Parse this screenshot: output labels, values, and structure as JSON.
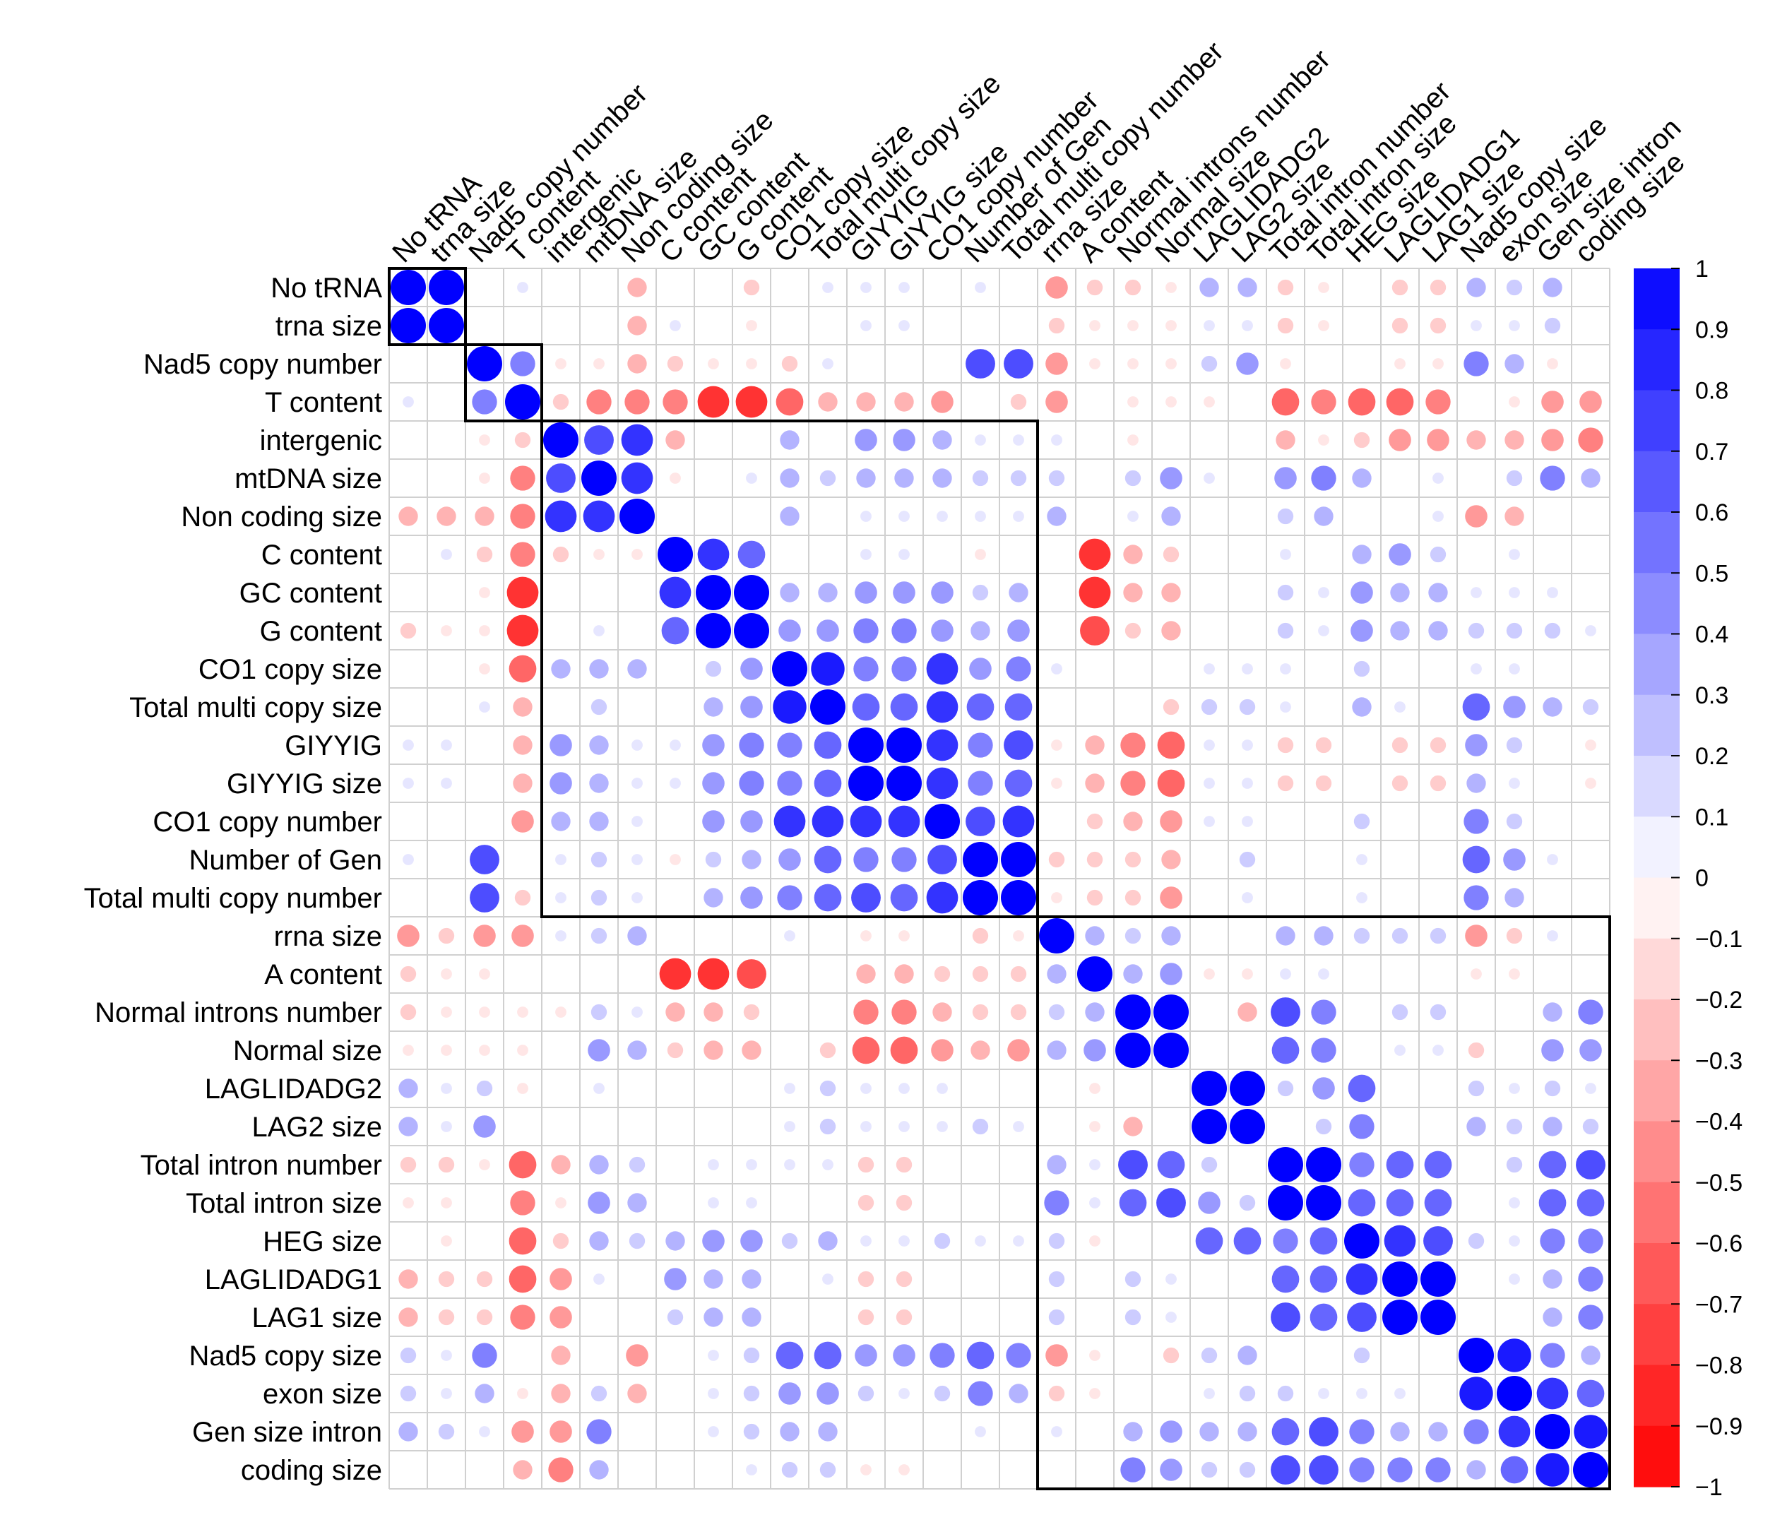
{
  "chart_data": {
    "type": "heatmap",
    "variables": [
      "No tRNA",
      "trna size",
      "Nad5 copy number",
      "T content",
      "intergenic",
      "mtDNA size",
      "Non coding size",
      "C content",
      "GC content",
      "G content",
      "CO1 copy size",
      "Total multi copy size",
      "GIYYIG",
      "GIYYIG size",
      "CO1 copy number",
      "Number of Gen",
      "Total multi copy number",
      "rrna size",
      "A content",
      "Normal introns number",
      "Normal size",
      "LAGLIDADG2",
      "LAG2 size",
      "Total intron number",
      "Total intron size",
      "HEG size",
      "LAGLIDADG1",
      "LAG1 size",
      "Nad5 copy size",
      "exon size",
      "Gen size intron",
      "coding size"
    ],
    "matrix": [
      [
        1,
        1,
        0,
        0.1,
        0,
        0,
        -0.3,
        0,
        0,
        -0.2,
        0,
        0.1,
        0.1,
        0.1,
        0,
        0.1,
        0,
        -0.4,
        -0.2,
        -0.2,
        -0.1,
        0.3,
        0.3,
        -0.2,
        -0.1,
        0,
        -0.2,
        -0.2,
        0.3,
        0.2,
        0.3,
        0
      ],
      [
        1,
        1,
        0,
        0,
        0,
        0,
        -0.3,
        0.1,
        0,
        -0.1,
        0,
        0,
        0.1,
        0.1,
        0,
        0,
        0,
        -0.2,
        -0.1,
        -0.1,
        -0.1,
        0.1,
        0.1,
        -0.2,
        -0.1,
        0,
        -0.2,
        -0.2,
        0.1,
        0.1,
        0.2,
        0
      ],
      [
        0,
        0,
        1,
        0.5,
        -0.1,
        -0.1,
        -0.3,
        -0.2,
        -0.1,
        -0.1,
        -0.2,
        0.1,
        0,
        0,
        0,
        0.7,
        0.7,
        -0.4,
        -0.1,
        -0.1,
        -0.1,
        0.2,
        0.4,
        -0.1,
        0,
        0,
        -0.1,
        -0.1,
        0.5,
        0.3,
        -0.1,
        0
      ],
      [
        0.1,
        0,
        0.5,
        1,
        -0.2,
        -0.5,
        -0.5,
        -0.5,
        -0.8,
        -0.8,
        -0.6,
        -0.3,
        -0.3,
        -0.3,
        -0.4,
        0,
        -0.2,
        -0.4,
        0,
        -0.1,
        -0.1,
        -0.1,
        0,
        -0.6,
        -0.5,
        -0.6,
        -0.6,
        -0.5,
        0,
        -0.1,
        -0.4,
        -0.4
      ],
      [
        0,
        0,
        -0.1,
        -0.2,
        1,
        0.7,
        0.8,
        -0.3,
        0,
        0,
        0.3,
        0,
        0.4,
        0.4,
        0.3,
        0.1,
        0.1,
        0.1,
        0,
        -0.1,
        0,
        0,
        0,
        -0.3,
        -0.1,
        -0.2,
        -0.4,
        -0.4,
        -0.3,
        -0.3,
        -0.4,
        -0.5
      ],
      [
        0,
        0,
        -0.1,
        -0.5,
        0.7,
        1,
        0.8,
        -0.1,
        0,
        0.1,
        0.3,
        0.2,
        0.3,
        0.3,
        0.3,
        0.2,
        0.2,
        0.2,
        0,
        0.2,
        0.4,
        0.1,
        0,
        0.4,
        0.5,
        0.3,
        0,
        0.1,
        0,
        0.2,
        0.5,
        0.3
      ],
      [
        -0.3,
        -0.3,
        -0.3,
        -0.5,
        0.8,
        0.8,
        1,
        0,
        0,
        0,
        0.3,
        0,
        0.1,
        0.1,
        0.1,
        0.1,
        0.1,
        0.3,
        0,
        0.1,
        0.3,
        0,
        0,
        0.2,
        0.3,
        0,
        0,
        0.1,
        -0.4,
        -0.3,
        0,
        0
      ],
      [
        0,
        0.1,
        -0.2,
        -0.5,
        -0.2,
        -0.1,
        -0.1,
        1,
        0.8,
        0.6,
        0,
        0,
        0.1,
        0.1,
        0,
        -0.1,
        0,
        0,
        -0.8,
        -0.3,
        -0.2,
        0,
        0,
        0.1,
        0,
        0.3,
        0.4,
        0.2,
        0,
        0.1,
        0,
        0
      ],
      [
        0,
        0,
        -0.1,
        -0.8,
        0,
        0,
        0,
        0.8,
        1,
        1,
        0.3,
        0.3,
        0.4,
        0.4,
        0.4,
        0.2,
        0.3,
        0,
        -0.8,
        -0.3,
        -0.3,
        0,
        0,
        0.2,
        0.1,
        0.4,
        0.3,
        0.3,
        0.1,
        0.1,
        0.1,
        0
      ],
      [
        -0.2,
        -0.1,
        -0.1,
        -0.8,
        0,
        0.1,
        0,
        0.6,
        1,
        1,
        0.4,
        0.4,
        0.5,
        0.5,
        0.4,
        0.3,
        0.4,
        0,
        -0.7,
        -0.2,
        -0.3,
        0,
        0,
        0.2,
        0.1,
        0.4,
        0.3,
        0.3,
        0.2,
        0.2,
        0.2,
        0.1
      ],
      [
        0,
        0,
        -0.1,
        -0.6,
        0.3,
        0.3,
        0.3,
        0,
        0.2,
        0.4,
        1,
        0.9,
        0.5,
        0.5,
        0.8,
        0.4,
        0.5,
        0.1,
        0,
        0,
        0,
        0.1,
        0.1,
        0.1,
        0,
        0.2,
        0,
        0,
        0.1,
        0.1,
        0,
        0
      ],
      [
        0,
        0,
        0.1,
        -0.3,
        0,
        0.2,
        0,
        0,
        0.3,
        0.4,
        0.9,
        1,
        0.6,
        0.6,
        0.8,
        0.6,
        0.6,
        0,
        0,
        0,
        -0.2,
        0.2,
        0.2,
        0.1,
        0,
        0.3,
        0.1,
        0,
        0.6,
        0.4,
        0.3,
        0.2
      ],
      [
        0.1,
        0.1,
        0,
        -0.3,
        0.4,
        0.3,
        0.1,
        0.1,
        0.4,
        0.5,
        0.5,
        0.6,
        1,
        1,
        0.8,
        0.5,
        0.7,
        -0.1,
        -0.3,
        -0.5,
        -0.6,
        0.1,
        0.1,
        -0.2,
        -0.2,
        0,
        -0.2,
        -0.2,
        0.4,
        0.2,
        0,
        -0.1
      ],
      [
        0.1,
        0.1,
        0,
        -0.3,
        0.4,
        0.3,
        0.1,
        0.1,
        0.4,
        0.5,
        0.5,
        0.6,
        1,
        1,
        0.8,
        0.5,
        0.6,
        -0.1,
        -0.3,
        -0.5,
        -0.6,
        0.1,
        0.1,
        -0.2,
        -0.2,
        0,
        -0.2,
        -0.2,
        0.3,
        0.1,
        0,
        -0.1
      ],
      [
        0,
        0,
        0,
        -0.4,
        0.3,
        0.3,
        0.1,
        0,
        0.4,
        0.4,
        0.8,
        0.8,
        0.8,
        0.8,
        1,
        0.7,
        0.8,
        0,
        -0.2,
        -0.3,
        -0.4,
        0.1,
        0.1,
        0,
        0,
        0.2,
        0,
        0,
        0.5,
        0.2,
        0,
        0
      ],
      [
        0.1,
        0,
        0.7,
        0,
        0.1,
        0.2,
        0.1,
        -0.1,
        0.2,
        0.3,
        0.4,
        0.6,
        0.5,
        0.5,
        0.7,
        1,
        1,
        -0.2,
        -0.2,
        -0.2,
        -0.3,
        0,
        0.2,
        0,
        0,
        0.1,
        0,
        0,
        0.6,
        0.4,
        0.1,
        0
      ],
      [
        0,
        0,
        0.7,
        -0.2,
        0.1,
        0.2,
        0.1,
        0,
        0.3,
        0.4,
        0.5,
        0.6,
        0.7,
        0.6,
        0.8,
        1,
        1,
        -0.1,
        -0.2,
        -0.2,
        -0.4,
        0,
        0.1,
        0,
        0,
        0.1,
        0,
        0,
        0.5,
        0.3,
        0,
        0
      ],
      [
        -0.4,
        -0.2,
        -0.4,
        -0.4,
        0.1,
        0.2,
        0.3,
        0,
        0,
        0,
        0.1,
        0,
        -0.1,
        -0.1,
        0,
        -0.2,
        -0.1,
        1,
        0.3,
        0.2,
        0.3,
        0,
        0,
        0.3,
        0.3,
        0.2,
        0.2,
        0.2,
        -0.4,
        -0.2,
        0.1,
        0
      ],
      [
        -0.2,
        -0.1,
        -0.1,
        0,
        0,
        0,
        0,
        -0.8,
        -0.8,
        -0.7,
        0,
        0,
        -0.3,
        -0.3,
        -0.2,
        -0.2,
        -0.2,
        0.3,
        1,
        0.3,
        0.4,
        -0.1,
        -0.1,
        0.1,
        0.1,
        0,
        0,
        0,
        -0.1,
        -0.1,
        0,
        0
      ],
      [
        -0.2,
        -0.1,
        -0.1,
        -0.1,
        -0.1,
        0.2,
        0.1,
        -0.3,
        -0.3,
        -0.2,
        0,
        0,
        -0.5,
        -0.5,
        -0.3,
        -0.2,
        -0.2,
        0.2,
        0.3,
        1,
        1,
        0,
        -0.3,
        0.7,
        0.5,
        0,
        0.2,
        0.2,
        0,
        0,
        0.3,
        0.5
      ],
      [
        -0.1,
        -0.1,
        -0.1,
        -0.1,
        0,
        0.4,
        0.3,
        -0.2,
        -0.3,
        -0.3,
        0,
        -0.2,
        -0.6,
        -0.6,
        -0.4,
        -0.3,
        -0.4,
        0.3,
        0.4,
        1,
        1,
        0,
        0,
        0.6,
        0.5,
        0,
        0.1,
        0.1,
        -0.2,
        0,
        0.4,
        0.4
      ],
      [
        0.3,
        0.1,
        0.2,
        -0.1,
        0,
        0.1,
        0,
        0,
        0,
        0,
        0.1,
        0.2,
        0.1,
        0.1,
        0.1,
        0,
        0,
        0,
        -0.1,
        0,
        0,
        1,
        1,
        0.2,
        0.4,
        0.6,
        0,
        0,
        0.2,
        0.1,
        0.2,
        0.1
      ],
      [
        0.3,
        0.1,
        0.4,
        0,
        0,
        0,
        0,
        0,
        0,
        0,
        0.1,
        0.2,
        0.1,
        0.1,
        0.1,
        0.2,
        0.1,
        0,
        -0.1,
        -0.3,
        0,
        1,
        1,
        0,
        0.2,
        0.5,
        0,
        0,
        0.3,
        0.2,
        0.3,
        0.2
      ],
      [
        -0.2,
        -0.2,
        -0.1,
        -0.6,
        -0.3,
        0.3,
        0.2,
        0,
        0.1,
        0.1,
        0.1,
        0.1,
        -0.2,
        -0.2,
        0,
        0,
        0,
        0.3,
        0.1,
        0.7,
        0.6,
        0.2,
        0,
        1,
        1,
        0.5,
        0.6,
        0.6,
        0,
        0.2,
        0.6,
        0.7
      ],
      [
        -0.1,
        -0.1,
        0,
        -0.5,
        -0.1,
        0.4,
        0.3,
        0,
        0.1,
        0.1,
        0,
        0,
        -0.2,
        -0.2,
        0,
        0,
        0,
        0.5,
        0.1,
        0.6,
        0.7,
        0.4,
        0.2,
        1,
        1,
        0.6,
        0.6,
        0.6,
        0,
        0.1,
        0.6,
        0.6
      ],
      [
        0,
        -0.1,
        0,
        -0.6,
        -0.2,
        0.3,
        0.2,
        0.3,
        0.4,
        0.4,
        0.2,
        0.3,
        0.1,
        0.1,
        0.2,
        0.1,
        0.1,
        0.2,
        -0.1,
        0,
        0,
        0.6,
        0.6,
        0.5,
        0.6,
        1,
        0.8,
        0.7,
        0.2,
        0.1,
        0.5,
        0.5
      ],
      [
        -0.3,
        -0.2,
        -0.2,
        -0.6,
        -0.4,
        0.1,
        0,
        0.4,
        0.3,
        0.3,
        0,
        0.1,
        -0.2,
        -0.2,
        0,
        0,
        0,
        0.2,
        0,
        0.2,
        0.1,
        0,
        0,
        0.6,
        0.6,
        0.8,
        1,
        1,
        0,
        0.1,
        0.3,
        0.5
      ],
      [
        -0.3,
        -0.2,
        -0.2,
        -0.5,
        -0.4,
        0,
        0,
        0.2,
        0.3,
        0.3,
        0,
        0,
        -0.2,
        -0.2,
        0,
        0,
        0,
        0.2,
        0,
        0.2,
        0.1,
        0,
        0,
        0.7,
        0.6,
        0.7,
        1,
        1,
        0,
        0,
        0.3,
        0.5
      ],
      [
        0.2,
        0.1,
        0.5,
        0,
        -0.3,
        0,
        -0.4,
        0,
        0.1,
        0.2,
        0.6,
        0.6,
        0.4,
        0.4,
        0.5,
        0.6,
        0.5,
        -0.4,
        -0.1,
        0,
        -0.2,
        0.2,
        0.3,
        0,
        0,
        0.2,
        0,
        0,
        1,
        0.9,
        0.5,
        0.3
      ],
      [
        0.2,
        0.1,
        0.3,
        -0.1,
        -0.3,
        0.2,
        -0.3,
        0,
        0.1,
        0.2,
        0.4,
        0.4,
        0.2,
        0.1,
        0.2,
        0.5,
        0.3,
        -0.2,
        -0.1,
        0,
        0,
        0.1,
        0.2,
        0.2,
        0.1,
        0.1,
        0.1,
        0,
        0.9,
        1,
        0.8,
        0.6
      ],
      [
        0.3,
        0.2,
        0.1,
        -0.4,
        -0.4,
        0.5,
        0,
        0,
        0.1,
        0.2,
        0.3,
        0.3,
        0,
        0,
        0,
        0.1,
        0,
        0.1,
        0,
        0.3,
        0.4,
        0.3,
        0.3,
        0.6,
        0.7,
        0.5,
        0.3,
        0.3,
        0.5,
        0.8,
        1,
        0.9
      ],
      [
        0,
        0,
        0,
        -0.3,
        -0.5,
        0.3,
        0,
        0,
        0,
        0.1,
        0.2,
        0.2,
        -0.1,
        -0.1,
        0,
        0,
        0,
        0,
        0,
        0.5,
        0.4,
        0.2,
        0.2,
        0.7,
        0.7,
        0.5,
        0.5,
        0.5,
        0.3,
        0.6,
        0.9,
        1
      ]
    ],
    "clusters": [
      [
        1,
        2
      ],
      [
        3,
        4
      ],
      [
        5,
        17
      ],
      [
        18,
        32
      ]
    ],
    "color_scale": {
      "min": -1,
      "max": 1,
      "ticks": [
        "1",
        "0.9",
        "0.8",
        "0.7",
        "0.6",
        "0.5",
        "0.4",
        "0.3",
        "0.2",
        "0.1",
        "0",
        "−0.1",
        "−0.2",
        "−0.3",
        "−0.4",
        "−0.5",
        "−0.6",
        "−0.7",
        "−0.8",
        "−0.9",
        "−1"
      ],
      "positive_color": "#0000FF",
      "negative_color": "#FF0000",
      "neutral_color": "#FFFFFF"
    },
    "grid": true,
    "legend_position": "right"
  }
}
